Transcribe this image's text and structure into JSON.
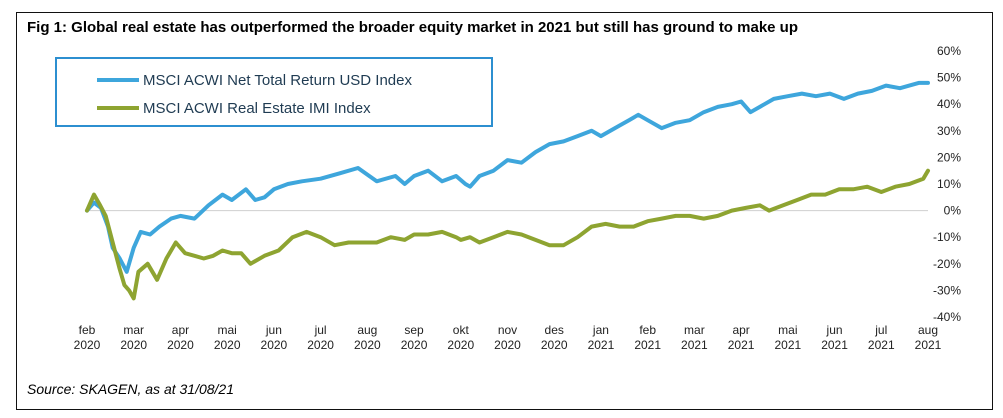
{
  "title": "Fig 1: Global real estate has outperformed the broader equity market in 2021 but still has ground to make up",
  "source": "Source: SKAGEN, as at 31/08/21",
  "chart_data": {
    "type": "line",
    "ylim": [
      -40,
      60
    ],
    "yticks": [
      "60%",
      "50%",
      "40%",
      "30%",
      "20%",
      "10%",
      "0%",
      "-10%",
      "-20%",
      "-30%",
      "-40%"
    ],
    "ytick_values": [
      60,
      50,
      40,
      30,
      20,
      10,
      0,
      -10,
      -20,
      -30,
      -40
    ],
    "x_months": [
      "feb",
      "mar",
      "apr",
      "mai",
      "jun",
      "jul",
      "aug",
      "sep",
      "okt",
      "nov",
      "des",
      "jan",
      "feb",
      "mar",
      "apr",
      "mai",
      "jun",
      "jul",
      "aug"
    ],
    "x_years": [
      "2020",
      "2020",
      "2020",
      "2020",
      "2020",
      "2020",
      "2020",
      "2020",
      "2020",
      "2020",
      "2020",
      "2021",
      "2021",
      "2021",
      "2021",
      "2021",
      "2021",
      "2021",
      "2021"
    ],
    "x_range": [
      0,
      18
    ],
    "series": [
      {
        "name": "MSCI ACWI Net Total Return USD Index",
        "color": "#3ea6dc",
        "x": [
          0,
          0.15,
          0.3,
          0.45,
          0.55,
          0.7,
          0.85,
          1.0,
          1.15,
          1.35,
          1.55,
          1.8,
          2.0,
          2.3,
          2.6,
          2.9,
          3.1,
          3.4,
          3.6,
          3.8,
          4.0,
          4.3,
          4.6,
          5.0,
          5.4,
          5.8,
          6.2,
          6.6,
          6.8,
          7.0,
          7.3,
          7.6,
          7.9,
          8.1,
          8.2,
          8.4,
          8.7,
          9.0,
          9.3,
          9.6,
          9.9,
          10.2,
          10.5,
          10.8,
          11.0,
          11.3,
          11.6,
          11.8,
          12.0,
          12.3,
          12.6,
          12.9,
          13.2,
          13.5,
          13.8,
          14.0,
          14.2,
          14.5,
          14.7,
          15.0,
          15.3,
          15.6,
          15.9,
          16.2,
          16.5,
          16.8,
          17.1,
          17.4,
          17.6,
          17.8,
          18.0
        ],
        "values": [
          0,
          3,
          1,
          -6,
          -14,
          -18,
          -23,
          -14,
          -8,
          -9,
          -6,
          -3,
          -2,
          -3,
          2,
          6,
          4,
          8,
          4,
          5,
          8,
          10,
          11,
          12,
          14,
          16,
          11,
          13,
          10,
          13,
          15,
          11,
          13,
          10,
          9,
          13,
          15,
          19,
          18,
          22,
          25,
          26,
          28,
          30,
          28,
          31,
          34,
          36,
          34,
          31,
          33,
          34,
          37,
          39,
          40,
          41,
          37,
          40,
          42,
          43,
          44,
          43,
          44,
          42,
          44,
          45,
          47,
          46,
          47,
          48,
          48
        ]
      },
      {
        "name": "MSCI ACWI Real Estate IMI Index",
        "color": "#8ea431",
        "x": [
          0,
          0.15,
          0.28,
          0.4,
          0.55,
          0.7,
          0.8,
          0.9,
          1.0,
          1.1,
          1.3,
          1.5,
          1.7,
          1.9,
          2.1,
          2.3,
          2.5,
          2.7,
          2.9,
          3.1,
          3.3,
          3.5,
          3.8,
          4.1,
          4.4,
          4.7,
          5.0,
          5.3,
          5.6,
          5.9,
          6.2,
          6.5,
          6.8,
          7.0,
          7.3,
          7.6,
          7.9,
          8.0,
          8.2,
          8.4,
          8.7,
          9.0,
          9.3,
          9.6,
          9.9,
          10.2,
          10.5,
          10.8,
          11.1,
          11.4,
          11.7,
          12.0,
          12.3,
          12.6,
          12.9,
          13.2,
          13.5,
          13.8,
          14.1,
          14.4,
          14.6,
          14.9,
          15.2,
          15.5,
          15.8,
          16.1,
          16.4,
          16.7,
          17.0,
          17.3,
          17.6,
          17.9,
          18.0
        ],
        "values": [
          0,
          6,
          2,
          -2,
          -12,
          -22,
          -28,
          -30,
          -33,
          -23,
          -20,
          -26,
          -18,
          -12,
          -16,
          -17,
          -18,
          -17,
          -15,
          -16,
          -16,
          -20,
          -17,
          -15,
          -10,
          -8,
          -10,
          -13,
          -12,
          -12,
          -12,
          -10,
          -11,
          -9,
          -9,
          -8,
          -10,
          -11,
          -10,
          -12,
          -10,
          -8,
          -9,
          -11,
          -13,
          -13,
          -10,
          -6,
          -5,
          -6,
          -6,
          -4,
          -3,
          -2,
          -2,
          -3,
          -2,
          0,
          1,
          2,
          0,
          2,
          4,
          6,
          6,
          8,
          8,
          9,
          7,
          9,
          10,
          12,
          15
        ]
      }
    ]
  }
}
